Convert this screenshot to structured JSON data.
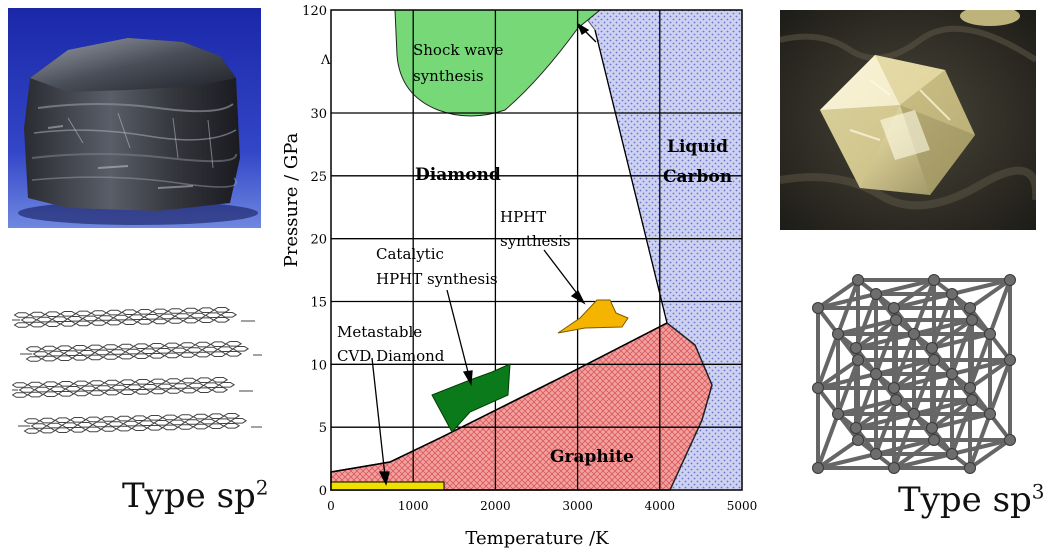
{
  "chart_data": {
    "type": "phase-diagram",
    "xlabel": "Temperature /K",
    "ylabel": "Pressure / GPa",
    "x_ticks": [
      "0",
      "1000",
      "2000",
      "3000",
      "4000",
      "5000"
    ],
    "y_ticks": [
      "0",
      "5",
      "10",
      "15",
      "20",
      "25",
      "30",
      "120"
    ],
    "xlim": [
      0,
      5000
    ],
    "ylim": [
      0,
      120
    ],
    "y_axis_break": {
      "between": [
        30,
        120
      ],
      "marker": "Λ"
    },
    "grid": true,
    "regions": [
      {
        "name": "Diamond",
        "label": "Diamond",
        "color": "#ffffff"
      },
      {
        "name": "Liquid Carbon",
        "label_lines": [
          "Liquid",
          "Carbon"
        ],
        "color": "#b8bfe8",
        "pattern": "dots"
      },
      {
        "name": "Graphite",
        "label": "Graphite",
        "color": "#f08c8c",
        "pattern": "crosshatch"
      }
    ],
    "annotations": [
      {
        "name": "shock-wave",
        "label_lines": [
          "Shock wave",
          "synthesis"
        ],
        "color": "#77d877"
      },
      {
        "name": "hpht",
        "label_lines": [
          "HPHT",
          "synthesis"
        ],
        "color": "#f4b400"
      },
      {
        "name": "catalytic-hpht",
        "label_lines": [
          "Catalytic",
          "HPHT synthesis"
        ],
        "color": "#0a7a1a"
      },
      {
        "name": "cvd",
        "label_lines": [
          "Metastable",
          "CVD Diamond"
        ],
        "color": "#f0e000"
      }
    ]
  },
  "panels": {
    "left": {
      "label": "Type sp",
      "sup": "2"
    },
    "right": {
      "label": "Type sp",
      "sup": "3"
    }
  },
  "colors": {
    "graphite_rock": "#3a3d44",
    "blue_background": "#2233aa",
    "diamond_crystal": "#e6dca8",
    "dark_background": "#2a2a24"
  }
}
